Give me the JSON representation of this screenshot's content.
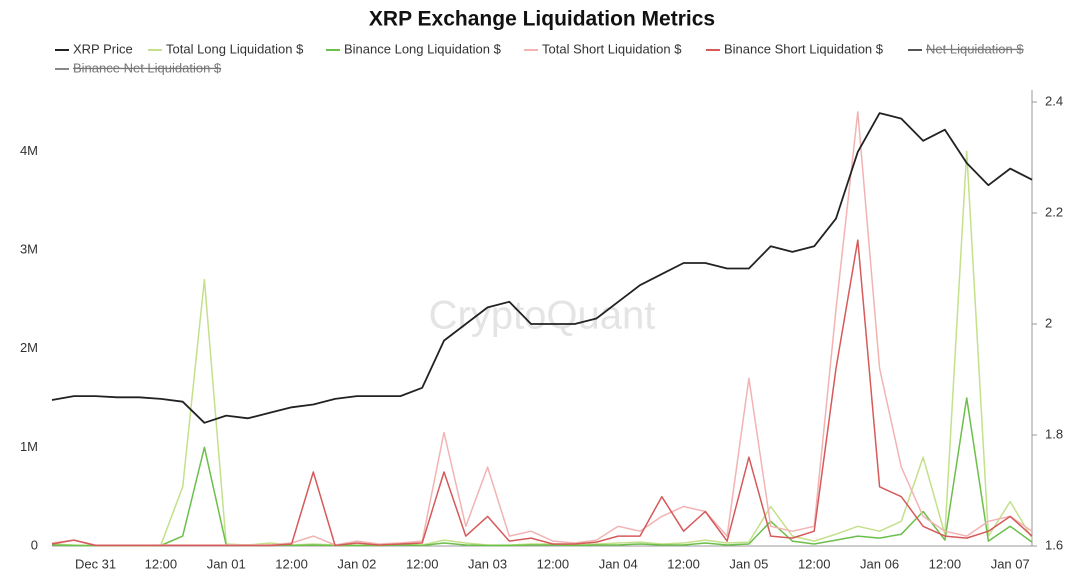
{
  "chart_data": {
    "type": "line",
    "title": "XRP Exchange Liquidation Metrics",
    "watermark": "CryptoQuant",
    "categories": [
      null,
      null,
      "Dec 31",
      null,
      null,
      "12:00",
      null,
      null,
      "Jan 01",
      null,
      null,
      "12:00",
      null,
      null,
      "Jan 02",
      null,
      null,
      "12:00",
      null,
      null,
      "Jan 03",
      null,
      null,
      "12:00",
      null,
      null,
      "Jan 04",
      null,
      null,
      "12:00",
      null,
      null,
      "Jan 05",
      null,
      null,
      "12:00",
      null,
      null,
      "Jan 06",
      null,
      null,
      "12:00",
      null,
      null,
      "Jan 07",
      null
    ],
    "series": [
      {
        "name": "XRP Price",
        "color": "#222222",
        "axis": "y2",
        "values": [
          1.863,
          1.87,
          1.87,
          1.868,
          1.868,
          1.865,
          1.86,
          1.822,
          1.835,
          1.83,
          1.84,
          1.85,
          1.855,
          1.865,
          1.87,
          1.87,
          1.87,
          1.885,
          1.97,
          2.0,
          2.03,
          2.04,
          2.0,
          2.0,
          2.0,
          2.01,
          2.04,
          2.07,
          2.09,
          2.11,
          2.11,
          2.1,
          2.1,
          2.14,
          2.13,
          2.14,
          2.19,
          2.31,
          2.38,
          2.37,
          2.33,
          2.35,
          2.29,
          2.25,
          2.28,
          2.26
        ]
      },
      {
        "name": "Total Long Liquidation $",
        "color": "#c4e08a",
        "values": [
          20000,
          10000,
          5000,
          5000,
          5000,
          10000,
          600000,
          2700000,
          20000,
          10000,
          30000,
          10000,
          20000,
          10000,
          10000,
          10000,
          20000,
          10000,
          60000,
          30000,
          10000,
          10000,
          20000,
          20000,
          10000,
          20000,
          30000,
          40000,
          20000,
          30000,
          60000,
          30000,
          40000,
          400000,
          100000,
          50000,
          120000,
          200000,
          150000,
          250000,
          900000,
          120000,
          4000000,
          100000,
          450000,
          80000
        ]
      },
      {
        "name": "Binance Long Liquidation $",
        "color": "#6cbf4a",
        "values": [
          10000,
          5000,
          2000,
          2000,
          2000,
          5000,
          100000,
          1000000,
          10000,
          5000,
          10000,
          5000,
          10000,
          5000,
          5000,
          5000,
          10000,
          5000,
          30000,
          10000,
          5000,
          5000,
          10000,
          10000,
          5000,
          10000,
          10000,
          20000,
          10000,
          10000,
          30000,
          10000,
          20000,
          250000,
          50000,
          20000,
          60000,
          100000,
          80000,
          120000,
          350000,
          60000,
          1500000,
          50000,
          200000,
          40000
        ]
      },
      {
        "name": "Total Short Liquidation $",
        "color": "#f2b3b3",
        "values": [
          30000,
          60000,
          10000,
          10000,
          10000,
          10000,
          10000,
          10000,
          10000,
          10000,
          10000,
          30000,
          100000,
          10000,
          50000,
          20000,
          30000,
          50000,
          1150000,
          200000,
          800000,
          100000,
          150000,
          50000,
          30000,
          60000,
          200000,
          150000,
          300000,
          400000,
          350000,
          100000,
          1700000,
          200000,
          150000,
          200000,
          2400000,
          4400000,
          1800000,
          800000,
          300000,
          150000,
          100000,
          250000,
          300000,
          150000
        ]
      },
      {
        "name": "Binance Short Liquidation $",
        "color": "#d65a5a",
        "values": [
          20000,
          60000,
          5000,
          5000,
          5000,
          5000,
          5000,
          5000,
          5000,
          5000,
          5000,
          20000,
          750000,
          5000,
          30000,
          10000,
          20000,
          30000,
          750000,
          100000,
          300000,
          50000,
          80000,
          20000,
          20000,
          40000,
          100000,
          100000,
          500000,
          150000,
          350000,
          50000,
          900000,
          100000,
          80000,
          150000,
          1800000,
          3100000,
          600000,
          500000,
          200000,
          100000,
          80000,
          150000,
          300000,
          100000
        ]
      },
      {
        "name": "Net Liquidation $",
        "color": "#555555",
        "hidden": true
      },
      {
        "name": "Binance Net Liquidation $",
        "color": "#888888",
        "hidden": true
      }
    ],
    "ylim": [
      0,
      4500000
    ],
    "yticks": [
      0,
      {
        "value": 1000000,
        "label": "1M"
      },
      {
        "value": 2000000,
        "label": "2M"
      },
      {
        "value": 3000000,
        "label": "3M"
      },
      {
        "value": 4000000,
        "label": "4M"
      }
    ],
    "y2lim": [
      1.6,
      2.4
    ],
    "y2ticks": [
      1.6,
      1.8,
      2,
      2.2,
      2.4
    ],
    "grid": false
  }
}
